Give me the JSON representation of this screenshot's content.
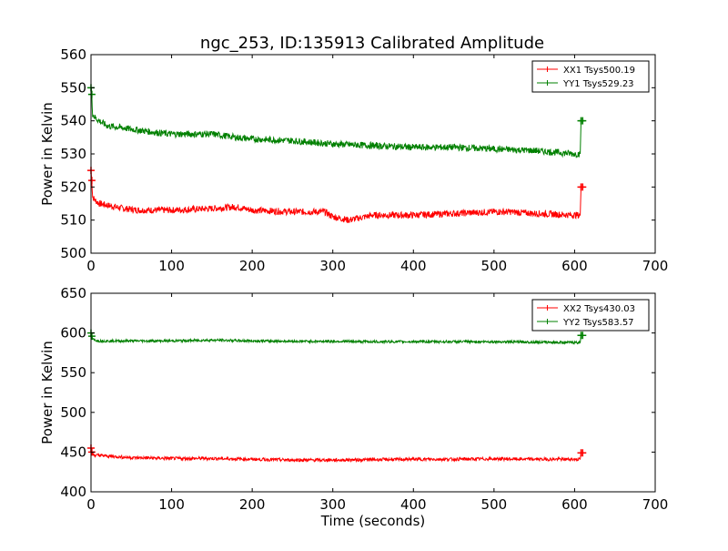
{
  "figure": {
    "title": "ngc_253, ID:135913 Calibrated Amplitude",
    "colors": {
      "xx": "#ff0000",
      "yy": "#008000",
      "axes": "#000000",
      "background": "#ffffff"
    }
  },
  "chart_data": [
    {
      "type": "line",
      "title": "ngc_253, ID:135913 Calibrated Amplitude",
      "xlabel": "",
      "ylabel": "Power in Kelvin",
      "xlim": [
        0,
        700
      ],
      "ylim": [
        500,
        560
      ],
      "xticks": [
        "0",
        "100",
        "200",
        "300",
        "400",
        "500",
        "600",
        "700"
      ],
      "yticks": [
        "500",
        "510",
        "520",
        "530",
        "540",
        "550",
        "560"
      ],
      "grid": false,
      "legend_position": "top-right",
      "series": [
        {
          "name": "XX1 Tsys500.19",
          "color": "#ff0000",
          "noise": 1.0,
          "x": [
            0,
            1,
            2,
            5,
            10,
            20,
            40,
            60,
            100,
            150,
            180,
            200,
            250,
            290,
            300,
            320,
            350,
            400,
            450,
            500,
            520,
            550,
            600,
            607,
            608,
            610
          ],
          "y": [
            525,
            522,
            517,
            516,
            515,
            514.5,
            513.5,
            513,
            513,
            513.5,
            514,
            513,
            512.5,
            512.5,
            511,
            510,
            511.5,
            511.5,
            512,
            512.5,
            512.5,
            512,
            511.5,
            511.5,
            520,
            520
          ]
        },
        {
          "name": "YY1 Tsys529.23",
          "color": "#008000",
          "noise": 1.0,
          "x": [
            0,
            1,
            2,
            5,
            10,
            20,
            50,
            80,
            100,
            150,
            180,
            200,
            250,
            300,
            350,
            400,
            450,
            500,
            550,
            600,
            607,
            608,
            610
          ],
          "y": [
            550,
            548,
            542,
            541,
            540,
            538.5,
            537.5,
            536.5,
            536,
            536,
            535,
            534.5,
            534,
            533,
            532.5,
            532,
            532,
            531.5,
            531,
            530,
            530,
            540,
            540
          ]
        }
      ]
    },
    {
      "type": "line",
      "title": "",
      "xlabel": "Time (seconds)",
      "ylabel": "Power in Kelvin",
      "xlim": [
        0,
        700
      ],
      "ylim": [
        400,
        650
      ],
      "xticks": [
        "0",
        "100",
        "200",
        "300",
        "400",
        "500",
        "600",
        "700"
      ],
      "yticks": [
        "400",
        "450",
        "500",
        "550",
        "600",
        "650"
      ],
      "grid": false,
      "legend_position": "top-right",
      "series": [
        {
          "name": "XX2 Tsys430.03",
          "color": "#ff0000",
          "noise": 2.0,
          "x": [
            0,
            1,
            2,
            5,
            10,
            20,
            50,
            100,
            150,
            200,
            250,
            300,
            350,
            400,
            450,
            500,
            550,
            600,
            607,
            608,
            610
          ],
          "y": [
            455,
            450,
            447,
            446,
            446,
            445,
            443,
            442,
            442,
            441,
            440,
            440,
            440.5,
            441,
            441,
            441.5,
            441,
            441,
            441,
            449,
            449
          ]
        },
        {
          "name": "YY2 Tsys583.57",
          "color": "#008000",
          "noise": 1.6,
          "x": [
            0,
            1,
            2,
            5,
            10,
            20,
            50,
            100,
            150,
            200,
            250,
            300,
            350,
            400,
            450,
            500,
            550,
            600,
            607,
            608,
            610
          ],
          "y": [
            600,
            596,
            592,
            591,
            590,
            590,
            590,
            590,
            591,
            590,
            589.5,
            589.5,
            589,
            589,
            589,
            589,
            588.5,
            588,
            588,
            597,
            597
          ]
        }
      ]
    }
  ]
}
